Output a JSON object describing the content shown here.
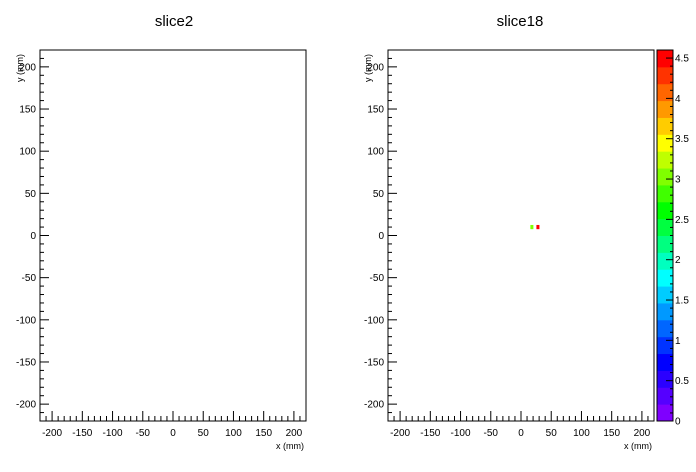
{
  "chart_data": [
    {
      "type": "heatmap",
      "title": "slice2",
      "xlabel": "",
      "ylabel": "y (mm)",
      "xlim": [
        -220,
        220
      ],
      "ylim": [
        -220,
        220
      ],
      "x_ticks": [
        -200,
        -150,
        -100,
        -50,
        0,
        50,
        100,
        150,
        200
      ],
      "y_ticks": [
        -200,
        -150,
        -100,
        -50,
        0,
        50,
        100,
        150,
        200
      ],
      "cells": []
    },
    {
      "type": "heatmap",
      "title": "slice18",
      "xlabel": "x (mm)",
      "ylabel": "y (mm)",
      "xlim": [
        -220,
        220
      ],
      "ylim": [
        -220,
        220
      ],
      "x_ticks": [
        -200,
        -150,
        -100,
        -50,
        0,
        50,
        100,
        150,
        200
      ],
      "y_ticks": [
        -200,
        -150,
        -100,
        -50,
        0,
        50,
        100,
        150,
        200
      ],
      "cells": [
        {
          "x": 18,
          "y": 10,
          "w": 5,
          "h": 5,
          "value": 3.0
        },
        {
          "x": 28,
          "y": 10,
          "w": 5,
          "h": 5,
          "value": 4.5
        }
      ],
      "colorbar": {
        "min": 0,
        "max": 4.6,
        "ticks": [
          0,
          0.5,
          1,
          1.5,
          2,
          2.5,
          3,
          3.5,
          4,
          4.5
        ],
        "colors": [
          "#7f00ff",
          "#5500ff",
          "#2b00ff",
          "#0000ff",
          "#0033ff",
          "#0066ff",
          "#0099ff",
          "#00ccff",
          "#00ffff",
          "#00ffbf",
          "#00ff80",
          "#00ff40",
          "#00ff00",
          "#40ff00",
          "#80ff00",
          "#bfff00",
          "#ffff00",
          "#ffcc00",
          "#ff9900",
          "#ff6600",
          "#ff3300",
          "#ff0000"
        ]
      }
    }
  ],
  "extra_labels": {
    "left_x_axis_label": "x (mm)"
  }
}
